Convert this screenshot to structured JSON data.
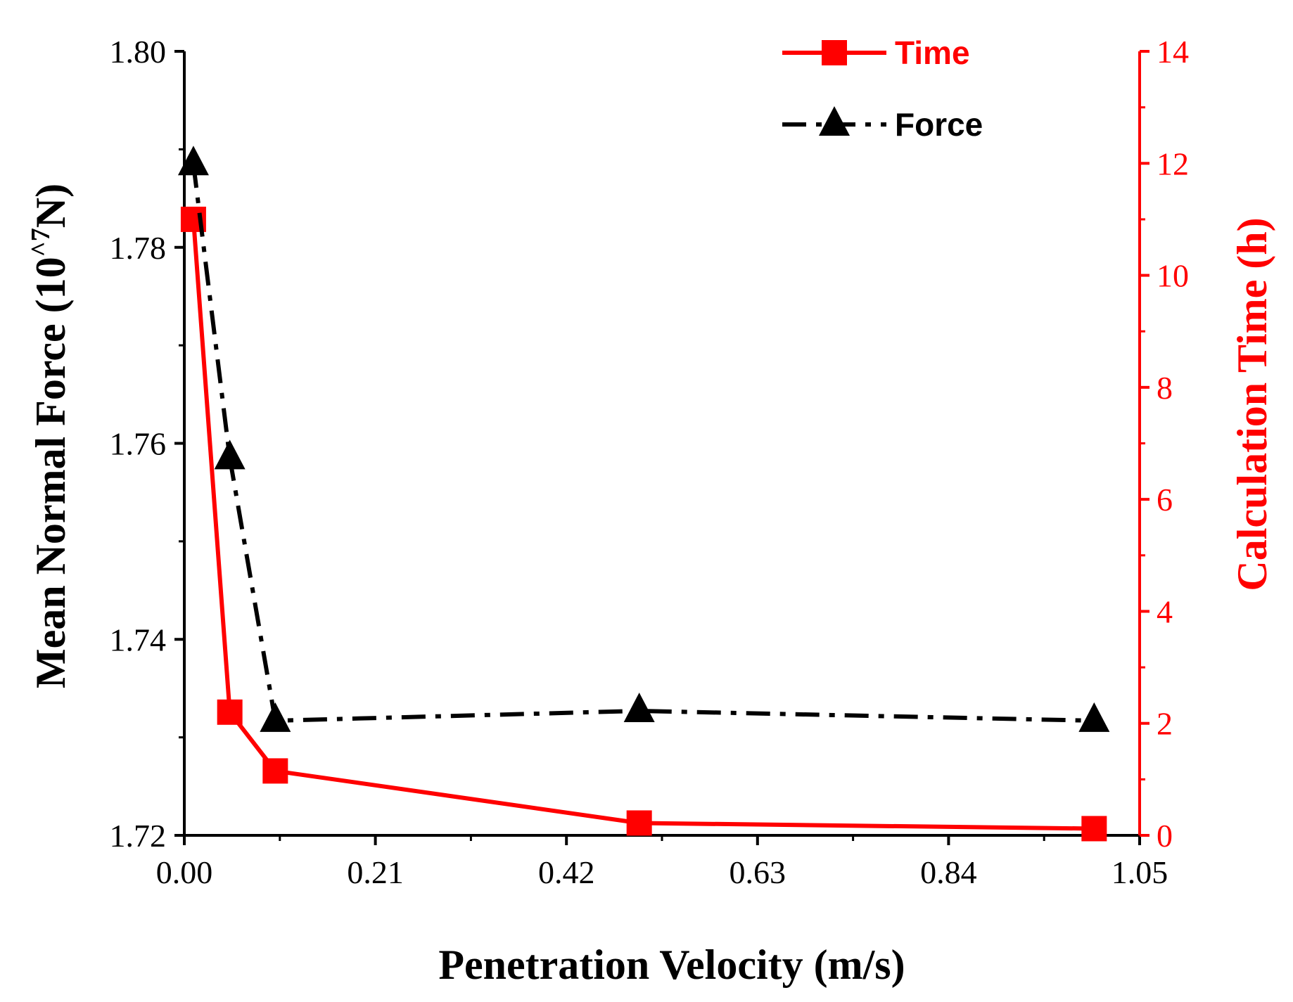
{
  "chart_data": {
    "type": "line",
    "x": [
      0.01,
      0.05,
      0.1,
      0.5,
      1.0
    ],
    "xlabel": "Penetration Velocity (m/s)",
    "xlim": [
      0.0,
      1.05
    ],
    "xticks": [
      0.0,
      0.21,
      0.42,
      0.63,
      0.84,
      1.05
    ],
    "xtick_labels": [
      "0.00",
      "0.21",
      "0.42",
      "0.63",
      "0.84",
      "1.05"
    ],
    "left_axis": {
      "ylabel_main": "Mean Normal Force (10",
      "ylabel_sup": "^7",
      "ylabel_tail": "N)",
      "ylim": [
        1.72,
        1.8
      ],
      "ticks": [
        1.72,
        1.74,
        1.76,
        1.78,
        1.8
      ],
      "tick_labels": [
        "1.72",
        "1.74",
        "1.76",
        "1.78",
        "1.80"
      ],
      "color": "#000000"
    },
    "right_axis": {
      "ylabel": "Calculation Time (h)",
      "ylim": [
        0,
        14
      ],
      "ticks": [
        0,
        2,
        4,
        6,
        8,
        10,
        12,
        14
      ],
      "tick_labels": [
        "0",
        "2",
        "4",
        "6",
        "8",
        "10",
        "12",
        "14"
      ],
      "color": "#ff0000"
    },
    "series": [
      {
        "name": "Time",
        "axis": "right",
        "marker": "square",
        "line_style": "solid",
        "color": "#ff0000",
        "values": [
          11.0,
          2.2,
          1.15,
          0.22,
          0.12
        ]
      },
      {
        "name": "Force",
        "axis": "left",
        "marker": "triangle",
        "line_style": "dash-dot",
        "color": "#000000",
        "values": [
          1.7885,
          1.7585,
          1.7317,
          1.7327,
          1.7317
        ]
      }
    ],
    "legend": {
      "position": "top-right",
      "entries": [
        {
          "label": "Time",
          "series": "Time"
        },
        {
          "label": "Force",
          "series": "Force"
        }
      ]
    }
  }
}
